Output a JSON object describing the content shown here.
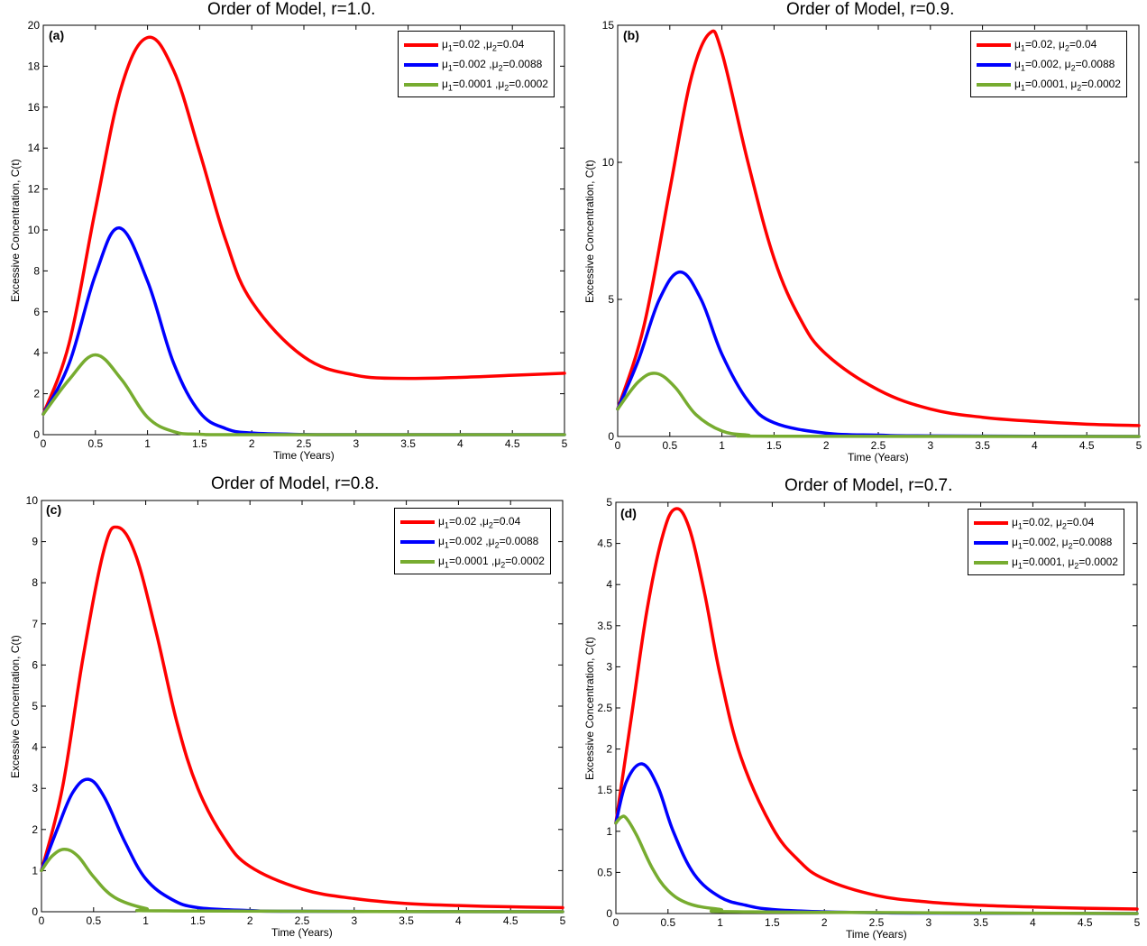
{
  "chart_data": [
    {
      "type": "line",
      "panel_label": "(a)",
      "title": "Order of Model, r=1.0.",
      "xlabel": "Time (Years)",
      "ylabel": "Excessive Concentration, C(t)",
      "xlim": [
        0,
        5
      ],
      "ylim": [
        0,
        20
      ],
      "xticks": [
        0,
        0.5,
        1,
        1.5,
        2,
        2.5,
        3,
        3.5,
        4,
        4.5,
        5
      ],
      "yticks": [
        0,
        2,
        4,
        6,
        8,
        10,
        12,
        14,
        16,
        18,
        20
      ],
      "grid": false,
      "legend_position": "top-right",
      "series": [
        {
          "legend": [
            "=0.02 ,",
            "=0.04"
          ],
          "color": "#ff0000",
          "x": [
            0,
            0.25,
            0.5,
            0.75,
            1.0,
            1.25,
            1.5,
            1.75,
            2.0,
            2.5,
            3.0,
            3.5,
            4.0,
            4.5,
            5.0
          ],
          "y": [
            1.0,
            4.5,
            11.0,
            17.0,
            19.4,
            17.8,
            13.8,
            9.5,
            6.5,
            3.8,
            2.9,
            2.75,
            2.8,
            2.9,
            3.0
          ]
        },
        {
          "legend": [
            "=0.002 ,",
            "=0.0088"
          ],
          "color": "#0000ff",
          "x": [
            0,
            0.25,
            0.5,
            0.73,
            1.0,
            1.25,
            1.5,
            1.75,
            2.0,
            2.5,
            3.0,
            5.0
          ],
          "y": [
            1.0,
            3.5,
            7.8,
            10.1,
            7.5,
            3.5,
            1.1,
            0.3,
            0.08,
            0.01,
            0.0,
            0.0
          ]
        },
        {
          "legend": [
            "=0.0001 ,",
            "=0.0002"
          ],
          "color": "#77ac30",
          "x": [
            0,
            0.25,
            0.5,
            0.75,
            1.0,
            1.25,
            1.5,
            2.0,
            5.0
          ],
          "y": [
            1.0,
            2.7,
            3.9,
            2.7,
            0.85,
            0.15,
            0.02,
            0.0,
            0.0
          ]
        }
      ]
    },
    {
      "type": "line",
      "panel_label": "(b)",
      "title": "Order of Model, r=0.9.",
      "xlabel": "Time (Years)",
      "ylabel": "Excessive Concentration, C(t)",
      "xlim": [
        0,
        5
      ],
      "ylim": [
        0,
        15
      ],
      "xticks": [
        0,
        0.5,
        1,
        1.5,
        2,
        2.5,
        3,
        3.5,
        4,
        4.5,
        5
      ],
      "yticks": [
        0,
        5,
        10,
        15
      ],
      "grid": false,
      "legend_position": "top-right",
      "series": [
        {
          "legend": [
            "=0.02, ",
            "=0.04"
          ],
          "color": "#ff0000",
          "x": [
            0,
            0.25,
            0.5,
            0.7,
            0.88,
            1.0,
            1.25,
            1.5,
            1.75,
            2.0,
            2.5,
            3.0,
            3.5,
            4.0,
            4.5,
            5.0
          ],
          "y": [
            1.0,
            4.0,
            9.0,
            13.0,
            14.7,
            14.0,
            10.0,
            6.5,
            4.3,
            3.0,
            1.7,
            1.0,
            0.7,
            0.55,
            0.45,
            0.4
          ]
        },
        {
          "legend": [
            "=0.002, ",
            "=0.0088"
          ],
          "color": "#0000ff",
          "x": [
            0,
            0.2,
            0.4,
            0.6,
            0.8,
            1.0,
            1.25,
            1.5,
            2.0,
            2.5,
            3.0,
            5.0
          ],
          "y": [
            1.0,
            2.8,
            5.0,
            6.0,
            5.0,
            3.0,
            1.3,
            0.5,
            0.12,
            0.05,
            0.02,
            0.0
          ]
        },
        {
          "legend": [
            "=0.0001, ",
            "=0.0002"
          ],
          "color": "#77ac30",
          "x": [
            0,
            0.2,
            0.37,
            0.55,
            0.75,
            1.0,
            1.25,
            1.5,
            5.0
          ],
          "y": [
            1.0,
            2.0,
            2.3,
            1.8,
            0.8,
            0.2,
            0.05,
            0.01,
            0.0
          ]
        }
      ]
    },
    {
      "type": "line",
      "panel_label": "(c)",
      "title": "Order of Model, r=0.8.",
      "xlabel": "Time (Years)",
      "ylabel": "Excessive Concentration, C(t)",
      "xlim": [
        0,
        5
      ],
      "ylim": [
        0,
        10
      ],
      "xticks": [
        0,
        0.5,
        1,
        1.5,
        2,
        2.5,
        3,
        3.5,
        4,
        4.5,
        5
      ],
      "yticks": [
        0,
        1,
        2,
        3,
        4,
        5,
        6,
        7,
        8,
        9,
        10
      ],
      "grid": false,
      "legend_position": "top-right",
      "series": [
        {
          "legend": [
            "=0.02 ,",
            "=0.04"
          ],
          "color": "#ff0000",
          "x": [
            0,
            0.2,
            0.4,
            0.6,
            0.73,
            0.9,
            1.1,
            1.3,
            1.5,
            1.75,
            2.0,
            2.5,
            3.0,
            3.5,
            4.0,
            4.5,
            5.0
          ],
          "y": [
            1.0,
            3.0,
            6.2,
            8.8,
            9.35,
            8.7,
            6.8,
            4.6,
            3.0,
            1.8,
            1.1,
            0.55,
            0.32,
            0.2,
            0.15,
            0.12,
            0.1
          ]
        },
        {
          "legend": [
            "=0.002 ,",
            "=0.0088"
          ],
          "color": "#0000ff",
          "x": [
            0,
            0.15,
            0.3,
            0.45,
            0.6,
            0.8,
            1.0,
            1.25,
            1.5,
            2.0,
            2.5,
            5.0
          ],
          "y": [
            1.0,
            2.0,
            2.9,
            3.22,
            2.8,
            1.7,
            0.8,
            0.3,
            0.1,
            0.03,
            0.01,
            0.0
          ]
        },
        {
          "legend": [
            "=0.0001 ,",
            "=0.0002"
          ],
          "color": "#77ac30",
          "x": [
            0,
            0.1,
            0.22,
            0.35,
            0.5,
            0.7,
            1.0,
            1.3,
            5.0
          ],
          "y": [
            1.0,
            1.35,
            1.52,
            1.35,
            0.85,
            0.35,
            0.08,
            0.02,
            0.0
          ]
        }
      ]
    },
    {
      "type": "line",
      "panel_label": "(d)",
      "title": "Order of Model, r=0.7.",
      "xlabel": "Time (Years)",
      "ylabel": "Excessive Concentration, C(t)",
      "xlim": [
        0,
        5
      ],
      "ylim": [
        0,
        5
      ],
      "xticks": [
        0,
        0.5,
        1,
        1.5,
        2,
        2.5,
        3,
        3.5,
        4,
        4.5,
        5
      ],
      "yticks": [
        0,
        0.5,
        1,
        1.5,
        2,
        2.5,
        3,
        3.5,
        4,
        4.5,
        5
      ],
      "grid": false,
      "legend_position": "top-right",
      "series": [
        {
          "legend": [
            "=0.02, ",
            "=0.04"
          ],
          "color": "#ff0000",
          "x": [
            0,
            0.15,
            0.3,
            0.45,
            0.57,
            0.7,
            0.85,
            1.0,
            1.2,
            1.5,
            1.75,
            2.0,
            2.5,
            3.0,
            3.5,
            4.0,
            4.5,
            5.0
          ],
          "y": [
            1.1,
            2.4,
            3.7,
            4.6,
            4.92,
            4.7,
            3.9,
            2.9,
            1.9,
            1.05,
            0.65,
            0.42,
            0.22,
            0.14,
            0.1,
            0.08,
            0.065,
            0.055
          ]
        },
        {
          "legend": [
            "=0.002, ",
            "=0.0088"
          ],
          "color": "#0000ff",
          "x": [
            0,
            0.1,
            0.25,
            0.4,
            0.55,
            0.75,
            1.0,
            1.25,
            1.5,
            2.0,
            2.5,
            3.0,
            5.0
          ],
          "y": [
            1.1,
            1.6,
            1.82,
            1.55,
            1.0,
            0.48,
            0.2,
            0.1,
            0.05,
            0.02,
            0.01,
            0.005,
            0.0
          ]
        },
        {
          "legend": [
            "=0.0001, ",
            "=0.0002"
          ],
          "color": "#77ac30",
          "x": [
            0,
            0.05,
            0.1,
            0.2,
            0.35,
            0.5,
            0.7,
            1.0,
            1.3,
            5.0
          ],
          "y": [
            1.1,
            1.17,
            1.16,
            0.95,
            0.55,
            0.28,
            0.12,
            0.05,
            0.02,
            0.0
          ]
        }
      ]
    }
  ]
}
